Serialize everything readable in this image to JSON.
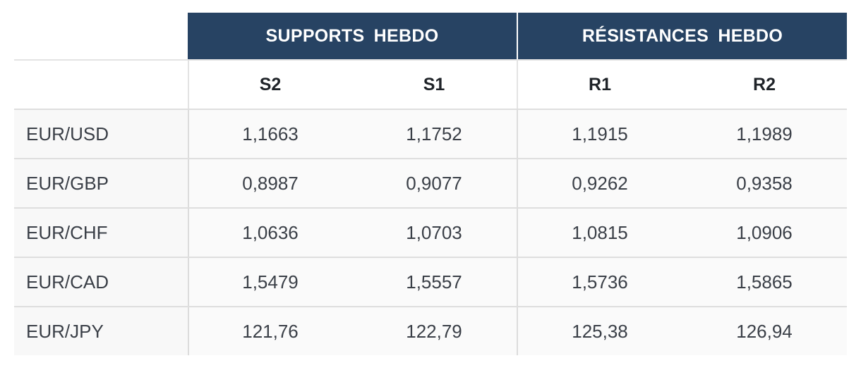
{
  "header": {
    "supports_label": "SUPPORTS  HEBDO",
    "resistances_label": "RÉSISTANCES  HEBDO"
  },
  "columns": {
    "s2": "S2",
    "s1": "S1",
    "r1": "R1",
    "r2": "R2"
  },
  "rows": [
    {
      "pair": "EUR/USD",
      "s2": "1,1663",
      "s1": "1,1752",
      "r1": "1,1915",
      "r2": "1,1989"
    },
    {
      "pair": "EUR/GBP",
      "s2": "0,8987",
      "s1": "0,9077",
      "r1": "0,9262",
      "r2": "0,9358"
    },
    {
      "pair": "EUR/CHF",
      "s2": "1,0636",
      "s1": "1,0703",
      "r1": "1,0815",
      "r2": "1,0906"
    },
    {
      "pair": "EUR/CAD",
      "s2": "1,5479",
      "s1": "1,5557",
      "r1": "1,5736",
      "r2": "1,5865"
    },
    {
      "pair": "EUR/JPY",
      "s2": "121,76",
      "s1": "122,79",
      "r1": "125,38",
      "r2": "126,94"
    }
  ],
  "colors": {
    "header_bg": "#274363",
    "header_text": "#ffffff",
    "row_bg": "#fafafa",
    "border": "#dedede"
  }
}
